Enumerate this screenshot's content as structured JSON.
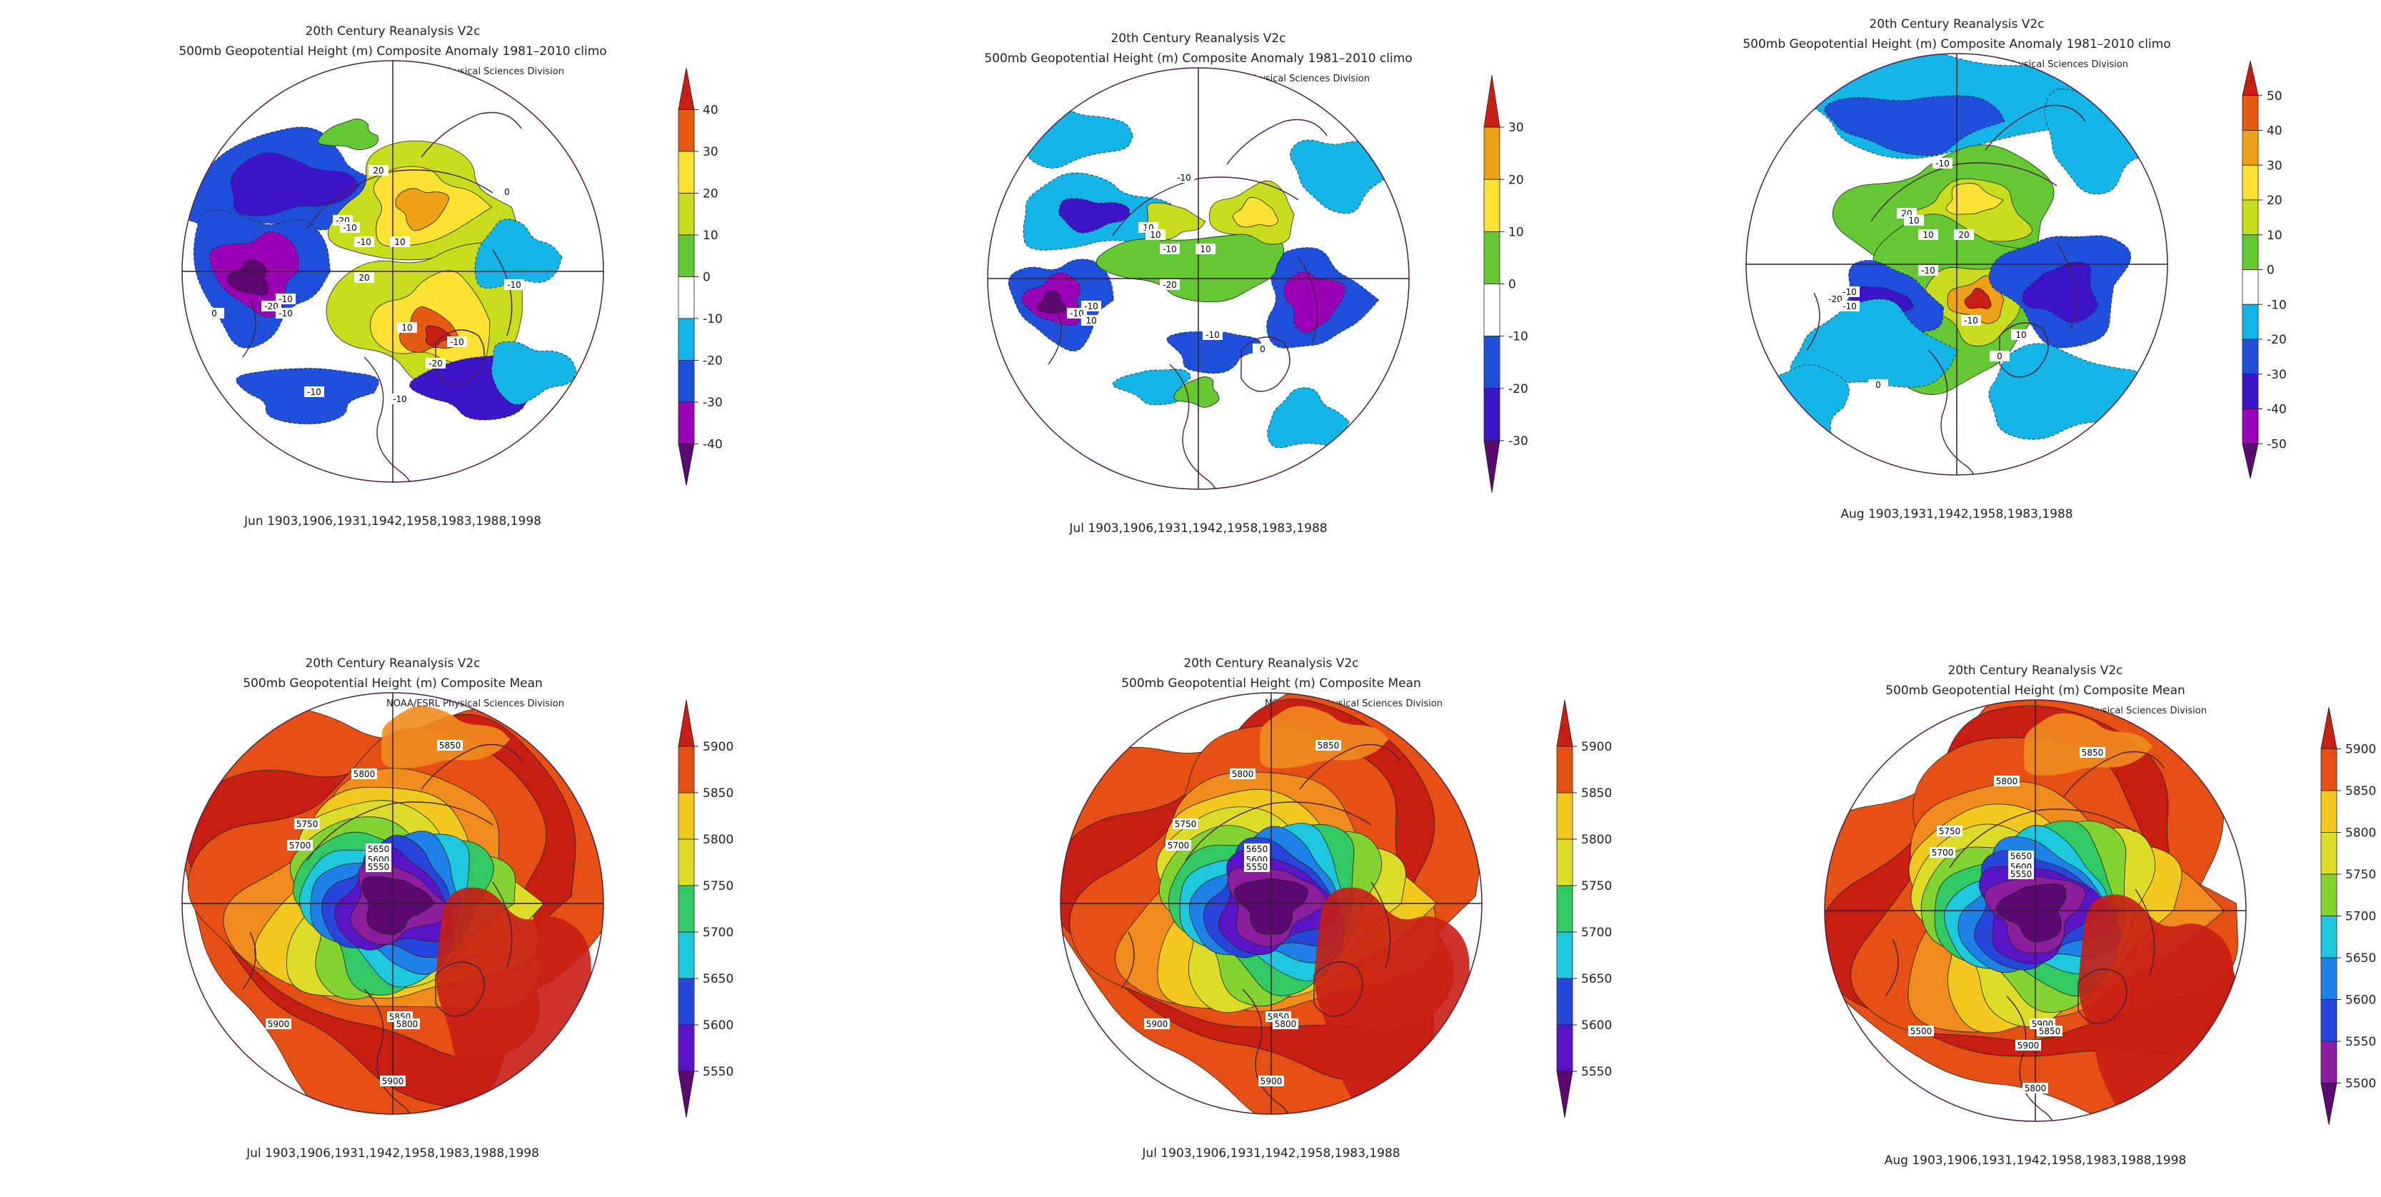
{
  "panels": [
    {
      "kind": "anomaly",
      "title1": "20th Century Reanalysis V2c",
      "title2": "500mb Geopotential Height (m) Composite Anomaly 1981–2010 climo",
      "credit": "NOAA/ESRL Physical Sciences Division",
      "caption": "Jun 1903,1906,1931,1942,1958,1983,1988,1998",
      "colorbar": {
        "ticks": [
          40,
          30,
          20,
          10,
          0,
          -10,
          -20,
          -30,
          -40
        ]
      },
      "contour_labels": [
        "20",
        "-20",
        "-10",
        "-10",
        "10",
        "20",
        "-10",
        "-20",
        "-10",
        "-10",
        "10",
        "-20",
        "-10",
        "-10",
        "0",
        "0",
        "-10"
      ]
    },
    {
      "kind": "anomaly",
      "title1": "20th Century Reanalysis V2c",
      "title2": "500mb Geopotential Height (m) Composite Anomaly 1981–2010 climo",
      "credit": "NOAA/ESRL Physical Sciences Division",
      "caption": "Jul 1903,1906,1931,1942,1958,1983,1988",
      "colorbar": {
        "ticks": [
          30,
          20,
          10,
          0,
          -10,
          -20,
          -30
        ]
      },
      "contour_labels": [
        "-10",
        "10",
        "10",
        "-10",
        "10",
        "-20",
        "-10",
        "-10",
        "10",
        "0",
        "-10"
      ]
    },
    {
      "kind": "anomaly",
      "title1": "20th Century Reanalysis V2c",
      "title2": "500mb Geopotential Height (m) Composite Anomaly 1981–2010 climo",
      "credit": "NOAA/ESRL Physical Sciences Division",
      "caption": "Aug 1903,1931,1942,1958,1983,1988",
      "colorbar": {
        "ticks": [
          50,
          40,
          30,
          20,
          10,
          0,
          -10,
          -20,
          -30,
          -40,
          -50
        ]
      },
      "contour_labels": [
        "-10",
        "20",
        "10",
        "10",
        "20",
        "-10",
        "-10",
        "-20",
        "-10",
        "10",
        "-10",
        "0",
        "0"
      ]
    },
    {
      "kind": "mean",
      "title1": "20th Century Reanalysis V2c",
      "title2": "500mb Geopotential Height (m) Composite Mean",
      "credit": "NOAA/ESRL Physical Sciences Division",
      "caption": "Jul 1903,1906,1931,1942,1958,1983,1988,1998",
      "colorbar": {
        "ticks": [
          5900,
          5850,
          5800,
          5750,
          5700,
          5650,
          5600,
          5550
        ]
      },
      "contour_labels": [
        "5850",
        "5800",
        "5750",
        "5700",
        "5650",
        "5600",
        "5550",
        "5900",
        "5850",
        "5800",
        "5900"
      ]
    },
    {
      "kind": "mean",
      "title1": "20th Century Reanalysis V2c",
      "title2": "500mb Geopotential Height (m) Composite Mean",
      "credit": "NOAA/ESRL Physical Sciences Division",
      "caption": "Jul 1903,1906,1931,1942,1958,1983,1988",
      "colorbar": {
        "ticks": [
          5900,
          5850,
          5800,
          5750,
          5700,
          5650,
          5600,
          5550
        ]
      },
      "contour_labels": [
        "5850",
        "5800",
        "5750",
        "5700",
        "5650",
        "5600",
        "5550",
        "5900",
        "5850",
        "5800",
        "5900"
      ]
    },
    {
      "kind": "mean",
      "title1": "20th Century Reanalysis V2c",
      "title2": "500mb Geopotential Height (m) Composite Mean",
      "credit": "NOAA/ESRL Physical Sciences Division",
      "caption": "Aug 1903,1906,1931,1942,1958,1983,1988,1998",
      "colorbar": {
        "ticks": [
          5900,
          5850,
          5800,
          5750,
          5700,
          5650,
          5600,
          5550,
          5500
        ]
      },
      "contour_labels": [
        "5850",
        "5800",
        "5750",
        "5700",
        "5650",
        "5600",
        "5550",
        "5500",
        "5900",
        "5850",
        "5800",
        "5900"
      ]
    }
  ],
  "colors": {
    "anomaly_scale": [
      "#5a0a6e",
      "#9b00b4",
      "#3c14c8",
      "#1e50dc",
      "#14b4e6",
      "#ffffff",
      "#ffffff",
      "#64c832",
      "#c8dc1e",
      "#fae132",
      "#f0a014",
      "#e65a14",
      "#c81e14"
    ],
    "mean_scale": [
      "#5a0a6e",
      "#8c1ea0",
      "#5a14c8",
      "#2846dc",
      "#1e82e6",
      "#1ec8dc",
      "#32c864",
      "#82d232",
      "#dcdc28",
      "#f0c81e",
      "#f08c1e",
      "#e65014",
      "#c81e14"
    ],
    "map_outline": "#4a2040"
  }
}
